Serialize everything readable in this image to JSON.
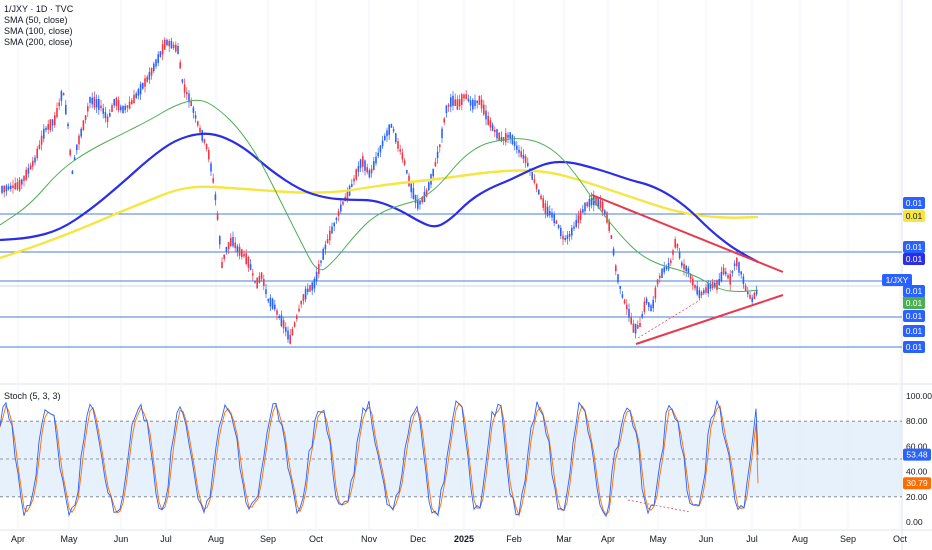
{
  "header": {
    "symbol_line": "1/JXY · 1D · TVC",
    "indicators": [
      "SMA (50, close)",
      "SMA (100, close)",
      "SMA (200, close)"
    ]
  },
  "colors": {
    "up_candle": "#2962ff",
    "down_candle": "#f23645",
    "sma50": "#4caf50",
    "sma100": "#2a2ee6",
    "sma200": "#f5e642",
    "trendline": "#e8394b",
    "hline": "#4a7fd4",
    "stoch_k": "#2962ff",
    "stoch_d": "#ff6d00",
    "stoch_band": "#dcebfb"
  },
  "chart_data": [
    {
      "type": "candlestick",
      "title": "1/JXY · 1D · TVC",
      "series_labels": [
        "SMA (50, close)",
        "SMA (100, close)",
        "SMA (200, close)"
      ],
      "x_ticks": [
        "Apr",
        "May",
        "Jun",
        "Jul",
        "Aug",
        "Sep",
        "Oct",
        "Nov",
        "Dec",
        "2025",
        "Feb",
        "Mar",
        "Apr",
        "May",
        "Jun",
        "Jul",
        "Aug",
        "Sep",
        "Oct"
      ],
      "price_labels": [
        {
          "text": "0.01",
          "color": "#2962ff"
        },
        {
          "text": "0.01",
          "color": "#f5e642"
        },
        {
          "text": "0.01",
          "color": "#2962ff"
        },
        {
          "text": "0.01",
          "color": "#2a2ee6"
        },
        {
          "text": "1/JXY",
          "color": "#2962ff"
        },
        {
          "text": "0.01",
          "color": "#2962ff"
        },
        {
          "text": "0.01",
          "color": "#2962ff"
        },
        {
          "text": "0.01",
          "color": "#4caf50"
        },
        {
          "text": "0.01",
          "color": "#2962ff"
        },
        {
          "text": "0.01",
          "color": "#2962ff"
        },
        {
          "text": "0.01",
          "color": "#2962ff"
        }
      ],
      "grid": true
    },
    {
      "type": "line",
      "title": "Stoch (5, 3, 3)",
      "y_ticks": [
        "100.00",
        "80.00",
        "60.00",
        "40.00",
        "20.00",
        "0.00"
      ],
      "ylim": [
        0,
        100
      ],
      "levels": [
        80,
        50,
        20
      ],
      "last_values": [
        {
          "text": "53.48",
          "color": "#2962ff"
        },
        {
          "text": "30.79",
          "color": "#ff6d00"
        }
      ]
    }
  ]
}
